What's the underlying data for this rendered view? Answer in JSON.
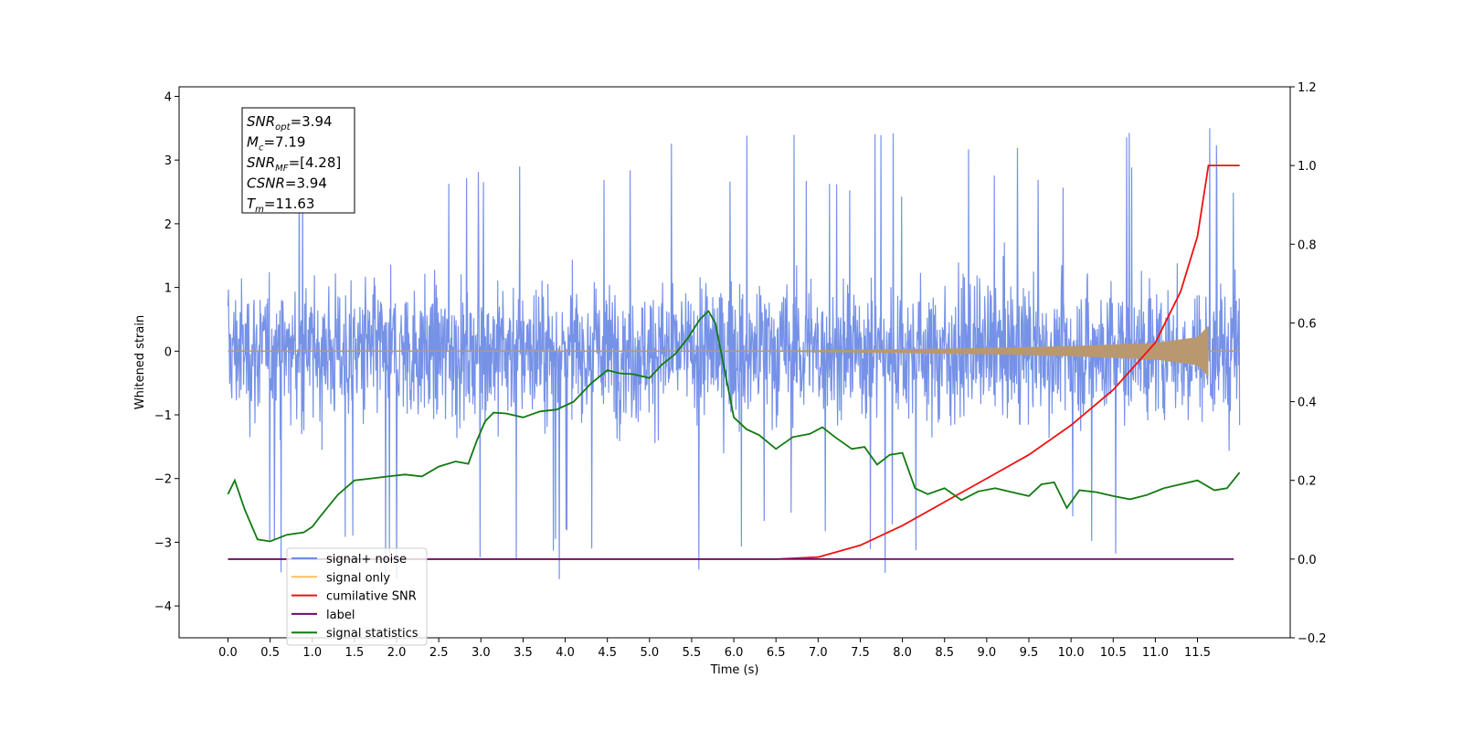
{
  "chart_data": {
    "type": "line",
    "xlabel": "Time (s)",
    "ylabel_left": "Whitened strain",
    "ylabel_right": "",
    "xlim": [
      -0.58,
      12.6
    ],
    "ylim_left": [
      -4.5,
      4.15
    ],
    "ylim_right": [
      -0.2,
      1.2
    ],
    "x_ticks": [
      0.0,
      0.5,
      1.0,
      1.5,
      2.0,
      2.5,
      3.0,
      3.5,
      4.0,
      4.5,
      5.0,
      5.5,
      6.0,
      6.5,
      7.0,
      7.5,
      8.0,
      8.5,
      9.0,
      9.5,
      10.0,
      10.5,
      11.0,
      11.5
    ],
    "x_tick_labels": [
      "0.0",
      "0.5",
      "1.0",
      "1.5",
      "2.0",
      "2.5",
      "3.0",
      "3.5",
      "4.0",
      "4.5",
      "5.0",
      "5.5",
      "6.0",
      "6.5",
      "7.0",
      "7.5",
      "8.0",
      "8.5",
      "9.0",
      "9.5",
      "10.0",
      "10.5",
      "11.0",
      "11.5"
    ],
    "y_left_ticks": [
      -4,
      -3,
      -2,
      -1,
      0,
      1,
      2,
      3,
      4
    ],
    "y_left_tick_labels": [
      "−4",
      "−3",
      "−2",
      "−1",
      "0",
      "1",
      "2",
      "3",
      "4"
    ],
    "y_right_ticks": [
      -0.2,
      0.0,
      0.2,
      0.4,
      0.6,
      0.8,
      1.0,
      1.2
    ],
    "y_right_tick_labels": [
      "−0.2",
      "0.0",
      "0.2",
      "0.4",
      "0.6",
      "0.8",
      "1.0",
      "1.2"
    ],
    "grid": false,
    "legend_position": "lower-left",
    "series": [
      {
        "name": "signal+ noise",
        "axis": "left",
        "color": "#6f8ce6",
        "kind": "noise",
        "x_range": [
          0.0,
          12.0
        ],
        "amplitude": 1.0,
        "envelope": [
          -2.2,
          2.3
        ],
        "max_peak": 3.78,
        "min_trough": -4.1
      },
      {
        "name": "signal only",
        "axis": "left",
        "color": "#ffbe5c",
        "kind": "chirp",
        "x_range": [
          0.0,
          11.63
        ],
        "fill_color": "#b99870",
        "envelope_points": [
          [
            0.0,
            0.0
          ],
          [
            6.5,
            0.01
          ],
          [
            8.0,
            0.03
          ],
          [
            9.0,
            0.05
          ],
          [
            10.0,
            0.08
          ],
          [
            11.0,
            0.13
          ],
          [
            11.5,
            0.22
          ],
          [
            11.63,
            0.4
          ]
        ]
      },
      {
        "name": "cumilative SNR",
        "axis": "right",
        "color": "#ee1111",
        "points": [
          [
            0.0,
            0.0
          ],
          [
            6.5,
            0.0
          ],
          [
            7.0,
            0.005
          ],
          [
            7.5,
            0.035
          ],
          [
            8.0,
            0.085
          ],
          [
            8.5,
            0.145
          ],
          [
            9.0,
            0.205
          ],
          [
            9.5,
            0.265
          ],
          [
            10.0,
            0.34
          ],
          [
            10.5,
            0.43
          ],
          [
            11.0,
            0.55
          ],
          [
            11.3,
            0.68
          ],
          [
            11.5,
            0.82
          ],
          [
            11.63,
            1.0
          ],
          [
            12.0,
            1.0
          ]
        ]
      },
      {
        "name": "label",
        "axis": "right",
        "color": "#6b0b6b",
        "points": [
          [
            0.0,
            0.0
          ],
          [
            11.93,
            0.0
          ]
        ]
      },
      {
        "name": "signal statistics",
        "axis": "right",
        "color": "#117a11",
        "points": [
          [
            0.0,
            0.165
          ],
          [
            0.08,
            0.2
          ],
          [
            0.2,
            0.125
          ],
          [
            0.35,
            0.05
          ],
          [
            0.5,
            0.045
          ],
          [
            0.7,
            0.062
          ],
          [
            0.9,
            0.068
          ],
          [
            1.0,
            0.082
          ],
          [
            1.1,
            0.11
          ],
          [
            1.3,
            0.163
          ],
          [
            1.5,
            0.2
          ],
          [
            1.7,
            0.205
          ],
          [
            1.9,
            0.21
          ],
          [
            2.1,
            0.215
          ],
          [
            2.3,
            0.21
          ],
          [
            2.5,
            0.235
          ],
          [
            2.7,
            0.248
          ],
          [
            2.85,
            0.242
          ],
          [
            2.95,
            0.3
          ],
          [
            3.05,
            0.35
          ],
          [
            3.15,
            0.372
          ],
          [
            3.3,
            0.37
          ],
          [
            3.5,
            0.36
          ],
          [
            3.7,
            0.375
          ],
          [
            3.9,
            0.38
          ],
          [
            4.1,
            0.4
          ],
          [
            4.3,
            0.445
          ],
          [
            4.5,
            0.48
          ],
          [
            4.65,
            0.472
          ],
          [
            4.8,
            0.47
          ],
          [
            5.0,
            0.46
          ],
          [
            5.15,
            0.495
          ],
          [
            5.3,
            0.52
          ],
          [
            5.45,
            0.56
          ],
          [
            5.6,
            0.61
          ],
          [
            5.7,
            0.63
          ],
          [
            5.78,
            0.6
          ],
          [
            5.9,
            0.47
          ],
          [
            6.0,
            0.36
          ],
          [
            6.15,
            0.33
          ],
          [
            6.3,
            0.315
          ],
          [
            6.5,
            0.28
          ],
          [
            6.7,
            0.31
          ],
          [
            6.9,
            0.318
          ],
          [
            7.05,
            0.335
          ],
          [
            7.2,
            0.31
          ],
          [
            7.4,
            0.28
          ],
          [
            7.55,
            0.285
          ],
          [
            7.7,
            0.24
          ],
          [
            7.85,
            0.265
          ],
          [
            8.0,
            0.27
          ],
          [
            8.15,
            0.18
          ],
          [
            8.3,
            0.165
          ],
          [
            8.5,
            0.18
          ],
          [
            8.7,
            0.15
          ],
          [
            8.9,
            0.172
          ],
          [
            9.1,
            0.18
          ],
          [
            9.3,
            0.17
          ],
          [
            9.5,
            0.16
          ],
          [
            9.65,
            0.19
          ],
          [
            9.8,
            0.195
          ],
          [
            9.95,
            0.13
          ],
          [
            10.1,
            0.175
          ],
          [
            10.3,
            0.17
          ],
          [
            10.5,
            0.16
          ],
          [
            10.7,
            0.152
          ],
          [
            10.9,
            0.163
          ],
          [
            11.1,
            0.18
          ],
          [
            11.3,
            0.19
          ],
          [
            11.5,
            0.2
          ],
          [
            11.7,
            0.175
          ],
          [
            11.85,
            0.18
          ],
          [
            12.0,
            0.22
          ]
        ]
      }
    ],
    "annotation_box": {
      "lines": [
        {
          "name": "SNR",
          "sub": "opt",
          "value": "=3.94"
        },
        {
          "name": "M",
          "sub": "c",
          "value": "=7.19"
        },
        {
          "name": "SNR",
          "sub": "MF",
          "value": "=[4.28]"
        },
        {
          "name": "CSNR",
          "sub": "",
          "value": "=3.94"
        },
        {
          "name": "T",
          "sub": "m",
          "value": "=11.63"
        }
      ]
    },
    "legend": {
      "entries": [
        {
          "label": "signal+ noise",
          "color": "#6f8ce6"
        },
        {
          "label": "signal only",
          "color": "#ffbe5c"
        },
        {
          "label": "cumilative SNR",
          "color": "#ee1111"
        },
        {
          "label": "label",
          "color": "#6b0b6b"
        },
        {
          "label": "signal statistics",
          "color": "#117a11"
        }
      ]
    }
  }
}
